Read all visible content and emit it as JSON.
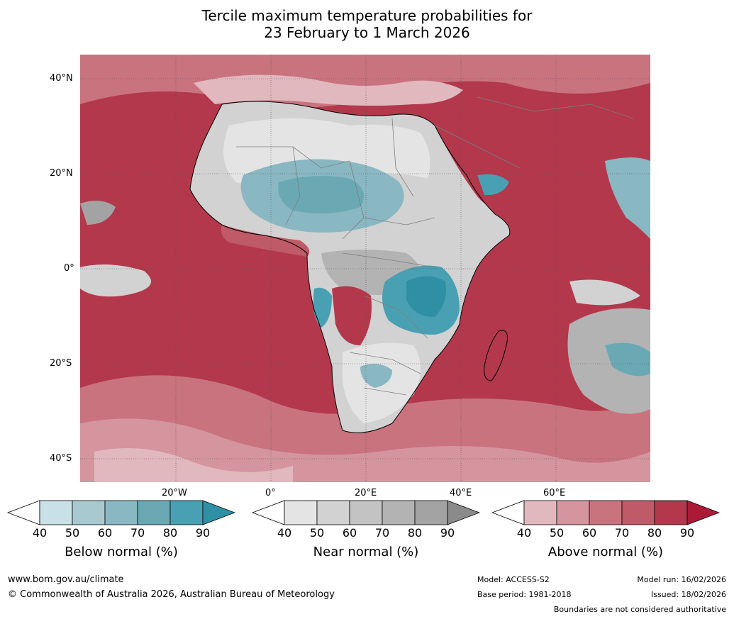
{
  "title": {
    "line1": "Tercile maximum temperature probabilities for",
    "line2": "23 February to 1 March 2026"
  },
  "map": {
    "lat_labels": [
      "40°N",
      "20°N",
      "0°",
      "20°S",
      "40°S"
    ],
    "lon_labels": [
      "20°W",
      "0°",
      "20°E",
      "40°E",
      "60°E"
    ]
  },
  "legends": [
    {
      "title": "Below normal (%)",
      "ticks": [
        "40",
        "50",
        "60",
        "70",
        "80",
        "90"
      ],
      "colors": [
        "#ffffff",
        "#c9e0e6",
        "#a8c9d0",
        "#89b7c2",
        "#6aa8b4",
        "#48a0b2",
        "#2f8fa5"
      ]
    },
    {
      "title": "Near normal (%)",
      "ticks": [
        "40",
        "50",
        "60",
        "70",
        "80",
        "90"
      ],
      "colors": [
        "#ffffff",
        "#e4e4e4",
        "#d2d2d2",
        "#c3c3c3",
        "#b3b3b3",
        "#a3a3a3",
        "#8a8a8a"
      ]
    },
    {
      "title": "Above normal (%)",
      "ticks": [
        "40",
        "50",
        "60",
        "70",
        "80",
        "90"
      ],
      "colors": [
        "#ffffff",
        "#e1b8be",
        "#d5959e",
        "#c9737f",
        "#bf5a68",
        "#b3384c",
        "#ab1b38"
      ]
    }
  ],
  "footer": {
    "url": "www.bom.gov.au/climate",
    "copyright": "© Commonwealth of Australia 2026, Australian Bureau of Meteorology",
    "model": "Model: ACCESS-S2",
    "base_period": "Base period: 1981-2018",
    "model_run": "Model run: 16/02/2026",
    "issued": "Issued: 18/02/2026",
    "disclaimer": "Boundaries are not considered authoritative"
  }
}
